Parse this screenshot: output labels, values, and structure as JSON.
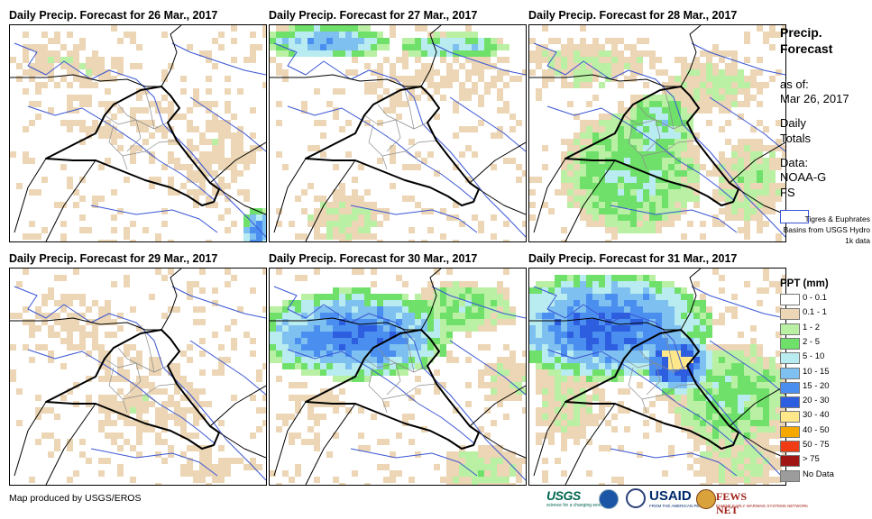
{
  "panels": [
    {
      "title": "Daily Precip. Forecast for 26 Mar., 2017"
    },
    {
      "title": "Daily Precip. Forecast for 27 Mar., 2017"
    },
    {
      "title": "Daily Precip. Forecast for 28 Mar., 2017"
    },
    {
      "title": "Daily Precip. Forecast for 29 Mar., 2017"
    },
    {
      "title": "Daily Precip. Forecast for 30 Mar., 2017"
    },
    {
      "title": "Daily Precip. Forecast for 31 Mar., 2017"
    }
  ],
  "sidebar": {
    "title": "Precip. Forecast",
    "as_of_label": "as of:",
    "as_of_date": "Mar 26, 2017",
    "period": "Daily Totals",
    "data_label": "Data:",
    "data_source": "NOAA-GFS",
    "basin_legend": "Tigres & Euphrates Basins from USGS Hydro 1k data"
  },
  "legend": {
    "title": "PPT (mm)",
    "items": [
      {
        "label": "0 - 0.1",
        "color": "#ffffff"
      },
      {
        "label": "0.1 - 1",
        "color": "#ecd6b5"
      },
      {
        "label": "1 - 2",
        "color": "#b9f0a3"
      },
      {
        "label": "2 - 5",
        "color": "#6fe06a"
      },
      {
        "label": "5 - 10",
        "color": "#b8ecf0"
      },
      {
        "label": "10 - 15",
        "color": "#7ec0f0"
      },
      {
        "label": "15 - 20",
        "color": "#4a8ff0"
      },
      {
        "label": "20 - 30",
        "color": "#2e5ee0"
      },
      {
        "label": "30 - 40",
        "color": "#ffe88a"
      },
      {
        "label": "40 - 50",
        "color": "#f5a800"
      },
      {
        "label": "50 - 75",
        "color": "#f03c14"
      },
      {
        "label": "> 75",
        "color": "#a01414"
      },
      {
        "label": "No Data",
        "color": "#9c9c9c"
      }
    ]
  },
  "footer": {
    "credit": "Map produced by USGS/EROS",
    "usgs": "USGS",
    "usgs_tagline": "science for a changing world",
    "usaid": "USAID",
    "usaid_tagline": "FROM THE AMERICAN PEOPLE",
    "fews": "FEWS NET",
    "fews_tagline": "FAMINE EARLY WARNING SYSTEMS NETWORK"
  },
  "colors": {
    "country_border": "#000000",
    "basin_outline": "#3a56d4",
    "admin_boundary": "#8c8c8c"
  }
}
